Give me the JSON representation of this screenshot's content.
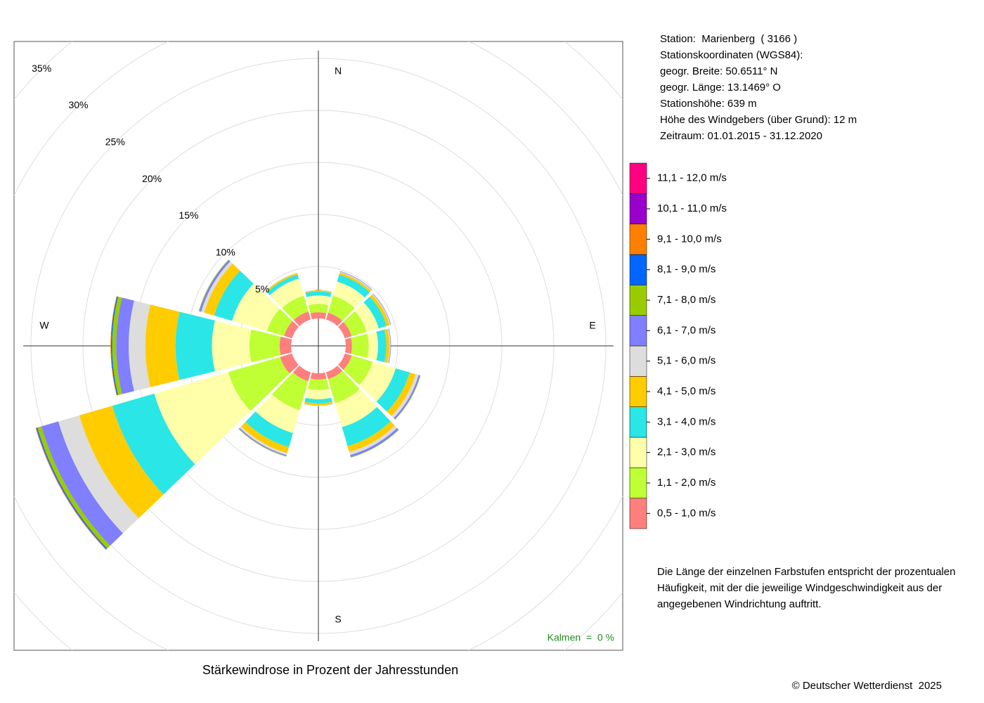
{
  "chart_data": {
    "type": "windrose",
    "title": "Stärkewindrose in Prozent der Jahresstunden",
    "categories": [
      "N",
      null,
      null,
      "E",
      null,
      null,
      "S",
      null,
      null,
      "W",
      null,
      null
    ],
    "rlim": [
      0,
      35
    ],
    "rticks": [
      {
        "value": 5,
        "label": "5%"
      },
      {
        "value": 10,
        "label": "10%"
      },
      {
        "value": 15,
        "label": "15%"
      },
      {
        "value": 20,
        "label": "20%"
      },
      {
        "value": 25,
        "label": "25%"
      },
      {
        "value": 30,
        "label": "30%"
      },
      {
        "value": 35,
        "label": "35%"
      }
    ],
    "grid": true,
    "series": [
      {
        "name": "0,5 - 1,0 m/s",
        "color": "#ff7f7f",
        "values": [
          0.6,
          0.7,
          0.7,
          0.6,
          0.7,
          0.7,
          0.6,
          0.9,
          1.2,
          1.1,
          0.8,
          0.8
        ]
      },
      {
        "name": "1,1 - 2,0 m/s",
        "color": "#bfff33",
        "values": [
          0.8,
          1.7,
          1.5,
          1.6,
          2.1,
          2.4,
          1.0,
          2.9,
          5.2,
          2.9,
          1.7,
          1.6
        ]
      },
      {
        "name": "2,1 - 3,0 m/s",
        "color": "#ffffaa",
        "values": [
          0.8,
          1.4,
          1.2,
          0.9,
          2.3,
          2.4,
          0.9,
          2.3,
          7.4,
          3.6,
          3.5,
          1.7
        ]
      },
      {
        "name": "3,1 - 4,0 m/s",
        "color": "#2be6e6",
        "values": [
          0.4,
          0.7,
          0.8,
          0.8,
          1.4,
          1.9,
          0.4,
          1.4,
          4.2,
          3.5,
          1.8,
          0.4
        ]
      },
      {
        "name": "4,1 - 5,0 m/s",
        "color": "#ffcc00",
        "values": [
          0.1,
          0.2,
          0.3,
          0.3,
          0.6,
          0.6,
          0.2,
          0.6,
          3.3,
          2.9,
          1.0,
          0.15
        ]
      },
      {
        "name": "5,1 - 6,0 m/s",
        "color": "#dddddd",
        "values": [
          0.05,
          0.1,
          0.1,
          0.1,
          0.3,
          0.3,
          0.05,
          0.2,
          2.1,
          1.6,
          0.3,
          0.05
        ]
      },
      {
        "name": "6,1 - 7,0 m/s",
        "color": "#7f7fff",
        "values": [
          0,
          0.05,
          0.05,
          0.05,
          0.15,
          0.2,
          0,
          0.1,
          1.7,
          1.2,
          0.2,
          0
        ]
      },
      {
        "name": "7,1 - 8,0 m/s",
        "color": "#99cc00",
        "values": [
          0,
          0,
          0,
          0,
          0.05,
          0.05,
          0,
          0.05,
          0.4,
          0.4,
          0.05,
          0
        ]
      },
      {
        "name": "8,1 - 9,0 m/s",
        "color": "#0066ff",
        "values": [
          0,
          0,
          0,
          0,
          0,
          0,
          0,
          0,
          0.1,
          0.1,
          0,
          0
        ]
      },
      {
        "name": "9,1 - 10,0 m/s",
        "color": "#ff8000",
        "values": [
          0,
          0,
          0,
          0,
          0,
          0,
          0,
          0,
          0.05,
          0.05,
          0,
          0
        ]
      },
      {
        "name": "10,1 - 11,0 m/s",
        "color": "#9900cc",
        "values": [
          0,
          0,
          0,
          0,
          0,
          0,
          0,
          0,
          0.02,
          0,
          0,
          0
        ]
      },
      {
        "name": "11,1 - 12,0 m/s",
        "color": "#ff0080",
        "values": [
          0,
          0,
          0,
          0,
          0,
          0,
          0,
          0,
          0,
          0,
          0,
          0
        ]
      }
    ],
    "calm_label": "Kalmen  =  0 %",
    "info_lines": [
      "Station:  Marienberg  ( 3166 )",
      "Stationskoordinaten (WGS84):",
      "geogr. Breite: 50.6511° N",
      "geogr. Länge: 13.1469° O",
      "Stationshöhe: 639 m",
      "Höhe des Windgebers (über Grund): 12 m",
      "Zeitraum: 01.01.2015 - 31.12.2020"
    ],
    "note_lines": [
      "Die Länge der einzelnen Farbstufen entspricht der prozentualen",
      "Häufigkeit, mit der die jeweilige Windgeschwindigkeit aus der",
      "angegebenen Windrichtung auftritt."
    ],
    "copyright": "© Deutscher Wetterdienst  2025"
  }
}
